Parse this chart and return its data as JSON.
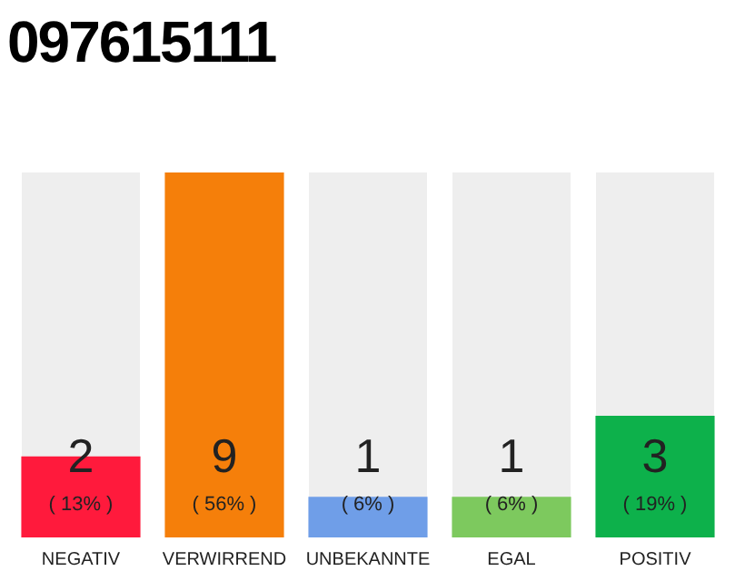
{
  "chart_data": {
    "type": "bar",
    "title": "097615111",
    "categories": [
      "NEGATIV",
      "VERWIRREND",
      "UNBEKANNTE",
      "EGAL",
      "POSITIV"
    ],
    "values": [
      2,
      9,
      1,
      1,
      3
    ],
    "colors": [
      "#ff1a3c",
      "#f57f0a",
      "#6f9ee8",
      "#7dc95e",
      "#0db14b"
    ],
    "annotations": [
      "( 13% )",
      "( 56% )",
      "( 6% )",
      "( 6% )",
      "( 19% )"
    ],
    "data_labels": true,
    "grid": false,
    "legend": false,
    "tick_labels": "x"
  }
}
